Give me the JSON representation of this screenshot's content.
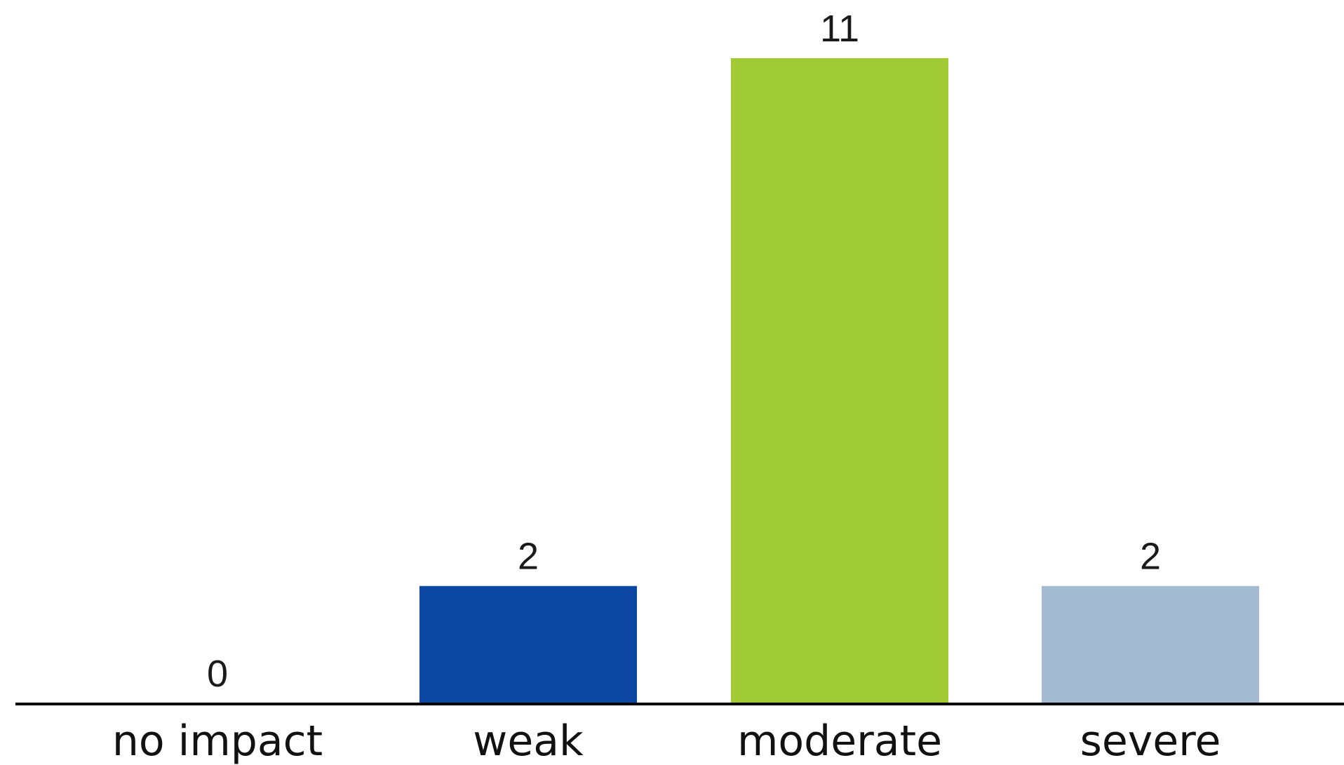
{
  "chart_data": {
    "type": "bar",
    "title": "",
    "xlabel": "",
    "ylabel": "",
    "categories": [
      "no impact",
      "weak",
      "moderate",
      "severe"
    ],
    "values": [
      0,
      2,
      11,
      2
    ],
    "colors": [
      "#0c47a1",
      "#0c47a1",
      "#a0cb35",
      "#a5bad3"
    ],
    "baseline_color": "#000000",
    "ylim": [
      0,
      11
    ],
    "grid": false,
    "legend": "none",
    "data_labels": true
  }
}
